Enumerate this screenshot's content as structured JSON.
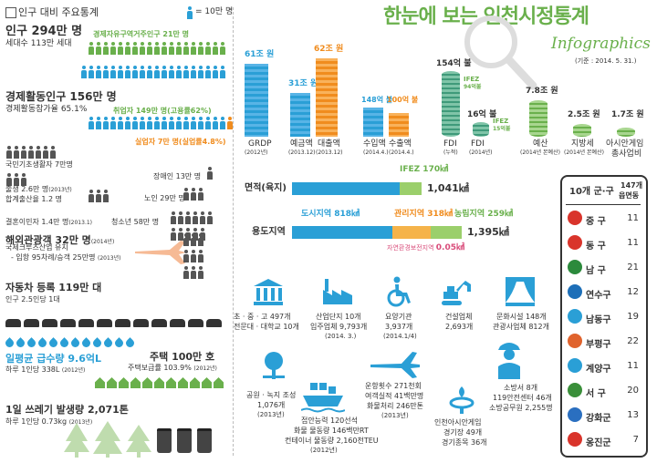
{
  "header": {
    "title": "한눈에 보는 인천시정통계",
    "subtitle": "Infographics",
    "basis": "(기준 : 2014. 5. 31.)"
  },
  "left": {
    "section_title": "인구 대비 주요통계",
    "legend": "= 10만 명",
    "population": {
      "title": "인구 294만 명",
      "households": "세대수 113만 세대",
      "fez_label": "경제자유구역거주인구 21만 명"
    },
    "economic": {
      "title": "경제활동인구 156만 명",
      "rate": "경제활동참가율 65.1%",
      "employed": "취업자 149만 명(고용률62%)",
      "unemployed": "실업자 7만 명(실업률4.8%)"
    },
    "welfare": {
      "basic": "국민기초생활자 7만명",
      "disabled": "장애인 13만 명",
      "birth": "출생 2.6만 명",
      "birth_year": "(2013년)",
      "fertility": "합계출산율 1.2 명",
      "elderly": "노인 29만 명",
      "marriage": "결혼이민자 1.4만 명",
      "marriage_year": "(2013.1)",
      "youth": "청소년 58만 명"
    },
    "tourism": {
      "title": "해외관광객 32만 명",
      "year": "(2014년)",
      "line1": "국제크루즈산업 유치",
      "line2": "- 입항 95차례/승객 25만명",
      "line2_year": "(2013년)"
    },
    "cars": {
      "title": "자동차 등록 119만 대",
      "sub": "인구 2.5인당 1대"
    },
    "water": {
      "title": "일평균 급수량 9.6억L",
      "sub": "하루 1인당 338L",
      "year": "(2012년)"
    },
    "housing": {
      "title": "주택 100만 호",
      "sub": "주택보급률 103.9%",
      "year": "(2012년)"
    },
    "waste": {
      "title": "1일 쓰레기 발생량 2,071톤",
      "sub": "하루 1인당 0.73kg",
      "year": "(2013년)"
    }
  },
  "finance": {
    "grdp": {
      "value": "61조 원",
      "label": "GRDP",
      "year": "(2012년)"
    },
    "deposit": {
      "value": "31조 원",
      "label": "예금액",
      "year": "(2013.12)"
    },
    "loan": {
      "value": "62조 원",
      "label": "대출액",
      "year": "(2013.12)"
    },
    "import": {
      "value": "148억 불",
      "label": "수입액",
      "year": "(2014.4.)"
    },
    "export": {
      "value": "100억 불",
      "label": "수출액",
      "year": "(2014.4.)"
    },
    "fdi": {
      "value": "154억 불",
      "label": "FDI",
      "sub": "(누적)",
      "ifez": "IFEZ",
      "ifez_val": "94억불"
    },
    "fdi2014": {
      "value": "16억 불",
      "label": "FDI",
      "sub": "(2014년)",
      "ifez": "IFEZ",
      "ifez_val": "15억불"
    },
    "budget": {
      "value": "7.8조 원",
      "label": "예산",
      "sub": "(2014년 본예산)"
    },
    "local_tax": {
      "value": "2.5조 원",
      "label": "지방세",
      "sub": "(2014년 본예산)"
    },
    "asian_games": {
      "value": "1.7조 원",
      "label": "아시안게임",
      "sub": "총사업비"
    }
  },
  "area": {
    "label": "면적(육지)",
    "ifez": "IFEZ 170㎢",
    "total": "1,041㎢"
  },
  "zoning": {
    "label": "용도지역",
    "urban": "도시지역 818㎢",
    "management": "관리지역 318㎢",
    "agri": "농림지역 259㎢",
    "nature": "자연환경보전지역",
    "nature_val": "0.05㎢",
    "total": "1,395㎢"
  },
  "facilities": {
    "schools": {
      "line1": "초 · 중 · 고 497개",
      "line2": "전문대 · 대학교 10개"
    },
    "industrial": {
      "line1": "산업단지 10개",
      "line2": "입주업체 9,793개",
      "line3": "(2014. 3.)"
    },
    "care": {
      "line1": "요양기관",
      "line2": "3,937개",
      "line3": "(2014.1/4)"
    },
    "construction": {
      "line1": "건설업체",
      "line2": "2,693개"
    },
    "culture": {
      "line1": "문화시설 148개",
      "line2": "관광사업체 812개"
    },
    "parks": {
      "line1": "공원 · 녹지 조성",
      "line2": "1,076개",
      "line3": "(2013년)"
    },
    "port": {
      "line1": "접안능력 120선석",
      "line2": "화물 물동량 146백만RT",
      "line3": "컨테이너 물동량 2,160천TEU",
      "line4": "(2012년)"
    },
    "airport": {
      "line1": "운항횟수 271천회",
      "line2": "여객실적 41백만명",
      "line3": "화물처리 246만톤",
      "line4": "(2013년)"
    },
    "fire": {
      "line1": "소방서 8개",
      "line2": "119안전센터 46개",
      "line3": "소방공무원 2,255명"
    },
    "stadium": {
      "line1": "인천아시안게임",
      "line2": "경기장 49개",
      "line3": "경기종목 36개"
    }
  },
  "districts": {
    "header_left": "10개 군·구",
    "header_right1": "147개",
    "header_right2": "읍면동",
    "rows": [
      {
        "name": "중 구",
        "value": "11",
        "color": "#d9342b"
      },
      {
        "name": "동 구",
        "value": "11",
        "color": "#d9342b"
      },
      {
        "name": "남 구",
        "value": "21",
        "color": "#2c8a3c"
      },
      {
        "name": "연수구",
        "value": "12",
        "color": "#1d6fb8"
      },
      {
        "name": "남동구",
        "value": "19",
        "color": "#2a9fd6"
      },
      {
        "name": "부평구",
        "value": "22",
        "color": "#e0632d"
      },
      {
        "name": "계양구",
        "value": "11",
        "color": "#2a9fd6"
      },
      {
        "name": "서 구",
        "value": "20",
        "color": "#3a8f3a"
      },
      {
        "name": "강화군",
        "value": "13",
        "color": "#2a6fc0"
      },
      {
        "name": "옹진군",
        "value": "7",
        "color": "#d9342b"
      }
    ]
  }
}
